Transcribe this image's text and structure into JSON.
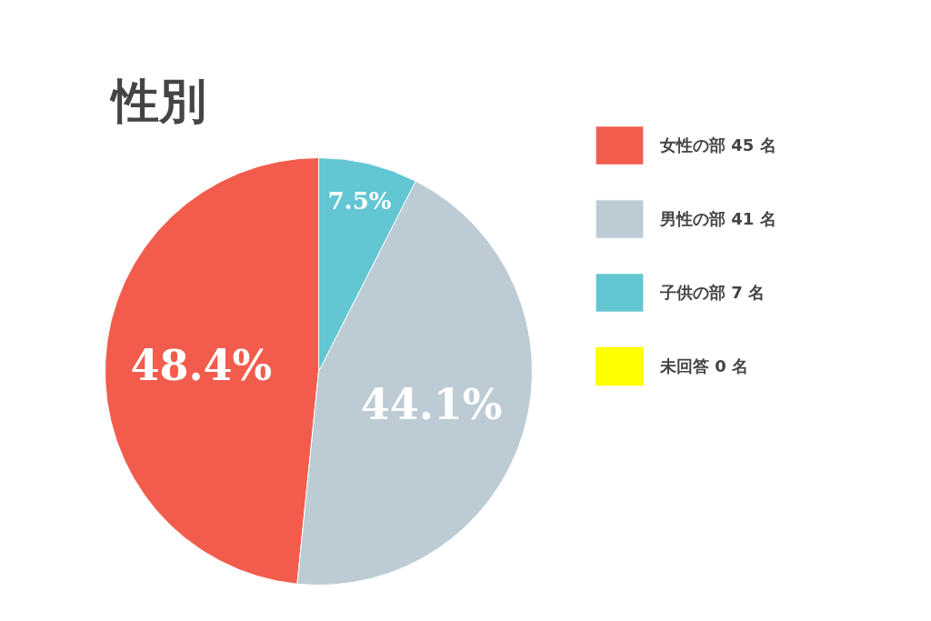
{
  "chart_data": {
    "type": "pie",
    "title": "性別",
    "categories": [
      "女性の部 45 名",
      "男性の部 41 名",
      "子供の部 7 名",
      "未回答 0 名"
    ],
    "values": [
      48.4,
      44.1,
      7.5,
      0
    ],
    "colors": [
      "#f25c4d",
      "#bccbd4",
      "#62c6d3",
      "#ffff00"
    ],
    "value_labels": [
      "48.4%",
      "44.1%",
      "7.5%",
      null
    ],
    "legend": "right"
  }
}
